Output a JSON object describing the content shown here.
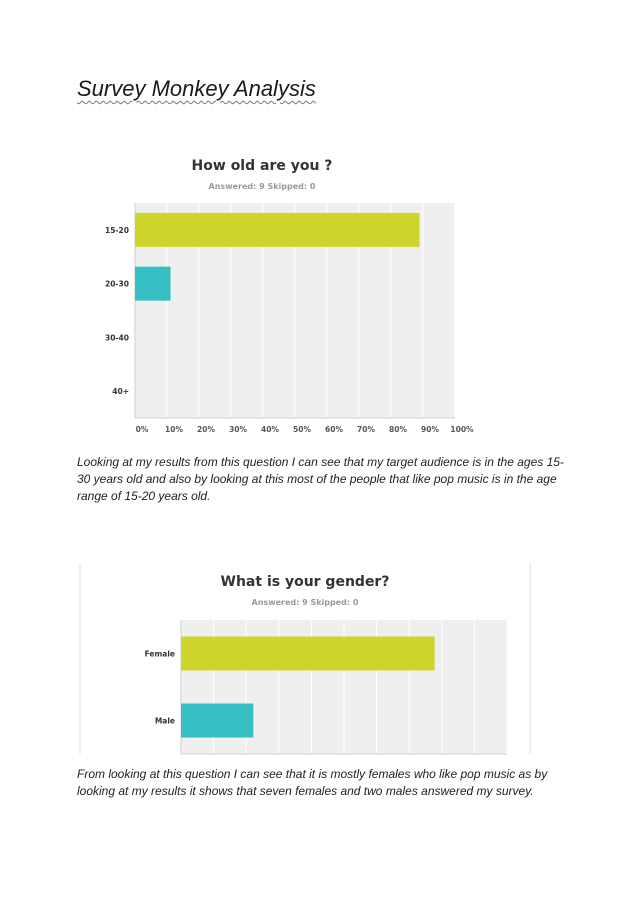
{
  "document": {
    "title": "Survey Monkey Analysis",
    "paragraph1": "Looking at my results from this question I can see that my target audience is in the ages 15-30 years old and also by looking at this most of the people that like pop music is in the age range of 15-20 years old.",
    "paragraph2": "From looking at this question I can see that it is mostly females who like pop music as by looking at my results it shows that seven females and two males answered my survey."
  },
  "colors": {
    "bar_lime": "#cdd52a",
    "bar_teal": "#36bfc2",
    "plot_bg": "#efefef"
  },
  "chart_data": [
    {
      "type": "bar",
      "orientation": "horizontal",
      "title": "How old are you ?",
      "subtitle": "Answered: 9    Skipped: 0",
      "categories": [
        "15-20",
        "20-30",
        "30-40",
        "40+"
      ],
      "values": [
        88.9,
        11.1,
        0,
        0
      ],
      "unit": "%",
      "xlim": [
        0,
        100
      ],
      "xticks": [
        "0%",
        "10%",
        "20%",
        "30%",
        "40%",
        "50%",
        "60%",
        "70%",
        "80%",
        "90%",
        "100%"
      ],
      "grid": true
    },
    {
      "type": "bar",
      "orientation": "horizontal",
      "title": "What is your gender?",
      "subtitle": "Answered: 9    Skipped: 0",
      "categories": [
        "Female",
        "Male"
      ],
      "values": [
        77.8,
        22.2
      ],
      "unit": "%",
      "xlim": [
        0,
        100
      ],
      "grid": true
    }
  ]
}
